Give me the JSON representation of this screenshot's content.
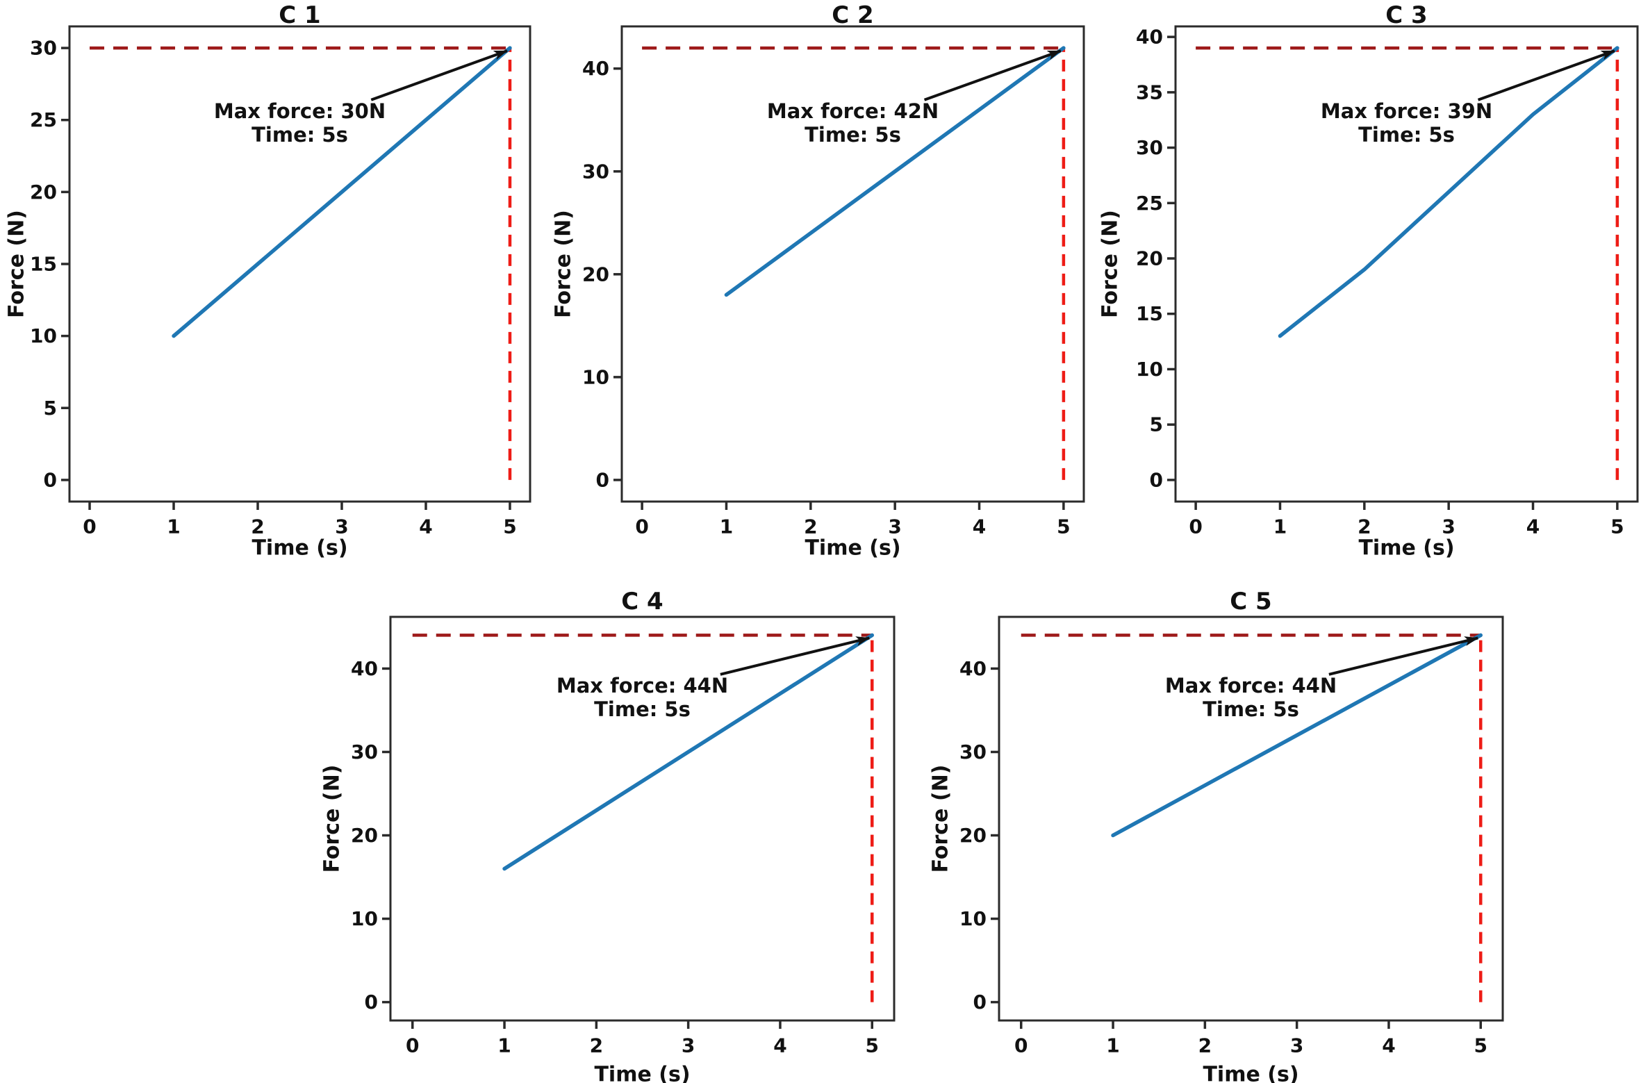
{
  "figure": {
    "background": "#ffffff",
    "rows": 2,
    "subplot_count": 5
  },
  "colors": {
    "force_line": "#1f77b4",
    "max_force_hline": "#9e1a1a",
    "time_vline": "#ee1c16",
    "spine": "#2b2b2b",
    "text": "#111111",
    "arrow": "#111111"
  },
  "chart_data": [
    {
      "id": "c1",
      "type": "line",
      "title": "C 1",
      "xlabel": "Time (s)",
      "ylabel": "Force (N)",
      "x": [
        1,
        2,
        3,
        4,
        5
      ],
      "y": [
        10,
        15,
        20,
        25,
        30
      ],
      "max_force": 30,
      "time_s": 5,
      "annotation_lines": [
        "Max force: 30N",
        "Time: 5s"
      ],
      "xticks": [
        0,
        1,
        2,
        3,
        4,
        5
      ],
      "yticks": [
        0,
        5,
        10,
        15,
        20,
        25,
        30
      ],
      "xlim": [
        -0.24,
        5.24
      ],
      "ylim": [
        -1.5,
        31.5
      ],
      "hline_y": 30,
      "vline_x": 5,
      "grid": false,
      "legend": "none"
    },
    {
      "id": "c2",
      "type": "line",
      "title": "C 2",
      "xlabel": "Time (s)",
      "ylabel": "Force (N)",
      "x": [
        1,
        2,
        3,
        4,
        5
      ],
      "y": [
        18,
        24,
        30,
        36,
        42
      ],
      "max_force": 42,
      "time_s": 5,
      "annotation_lines": [
        "Max force: 42N",
        "Time: 5s"
      ],
      "xticks": [
        0,
        1,
        2,
        3,
        4,
        5
      ],
      "yticks": [
        0,
        10,
        20,
        30,
        40
      ],
      "xlim": [
        -0.24,
        5.24
      ],
      "ylim": [
        -2.1,
        44.1
      ],
      "hline_y": 42,
      "vline_x": 5,
      "grid": false,
      "legend": "none"
    },
    {
      "id": "c3",
      "type": "line",
      "title": "C 3",
      "xlabel": "Time (s)",
      "ylabel": "Force (N)",
      "x": [
        1,
        2,
        3,
        4,
        5
      ],
      "y": [
        13,
        19,
        26,
        33,
        39
      ],
      "max_force": 39,
      "time_s": 5,
      "annotation_lines": [
        "Max force: 39N",
        "Time: 5s"
      ],
      "xticks": [
        0,
        1,
        2,
        3,
        4,
        5
      ],
      "yticks": [
        0,
        5,
        10,
        15,
        20,
        25,
        30,
        35,
        40
      ],
      "xlim": [
        -0.24,
        5.24
      ],
      "ylim": [
        -1.95,
        40.95
      ],
      "hline_y": 39,
      "vline_x": 5,
      "grid": false,
      "legend": "none"
    },
    {
      "id": "c4",
      "type": "line",
      "title": "C 4",
      "xlabel": "Time (s)",
      "ylabel": "Force (N)",
      "x": [
        1,
        2,
        3,
        4,
        5
      ],
      "y": [
        16,
        23,
        30,
        37,
        44
      ],
      "max_force": 44,
      "time_s": 5,
      "annotation_lines": [
        "Max force: 44N",
        "Time: 5s"
      ],
      "xticks": [
        0,
        1,
        2,
        3,
        4,
        5
      ],
      "yticks": [
        0,
        10,
        20,
        30,
        40
      ],
      "xlim": [
        -0.24,
        5.24
      ],
      "ylim": [
        -2.2,
        46.2
      ],
      "hline_y": 44,
      "vline_x": 5,
      "grid": false,
      "legend": "none"
    },
    {
      "id": "c5",
      "type": "line",
      "title": "C 5",
      "xlabel": "Time (s)",
      "ylabel": "Force (N)",
      "x": [
        1,
        2,
        3,
        4,
        5
      ],
      "y": [
        20,
        26,
        32,
        38,
        44
      ],
      "max_force": 44,
      "time_s": 5,
      "annotation_lines": [
        "Max force: 44N",
        "Time: 5s"
      ],
      "xticks": [
        0,
        1,
        2,
        3,
        4,
        5
      ],
      "yticks": [
        0,
        10,
        20,
        30,
        40
      ],
      "xlim": [
        -0.24,
        5.24
      ],
      "ylim": [
        -2.2,
        46.2
      ],
      "hline_y": 44,
      "vline_x": 5,
      "grid": false,
      "legend": "none"
    }
  ]
}
